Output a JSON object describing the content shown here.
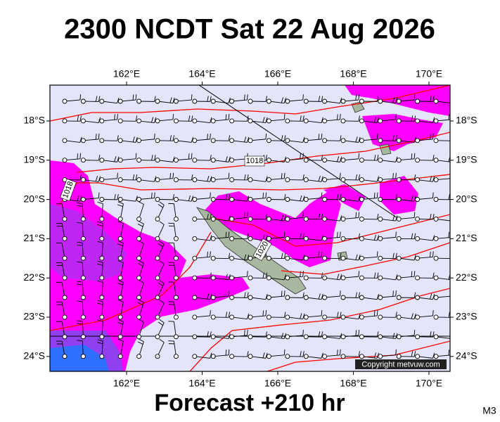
{
  "title": "2300 NCDT Sat 22 Aug 2026",
  "map": {
    "lon_labels": [
      "162°E",
      "164°E",
      "166°E",
      "168°E",
      "170°E"
    ],
    "lat_labels": [
      "18°S",
      "19°S",
      "20°S",
      "21°S",
      "22°S",
      "23°S",
      "24°S"
    ],
    "isobar_labels": [
      "1018",
      "1018",
      "1020"
    ],
    "copyright": "Copyright metvuw.com"
  },
  "footer": {
    "forecast": "Forecast +210 hr",
    "code": "M3"
  }
}
